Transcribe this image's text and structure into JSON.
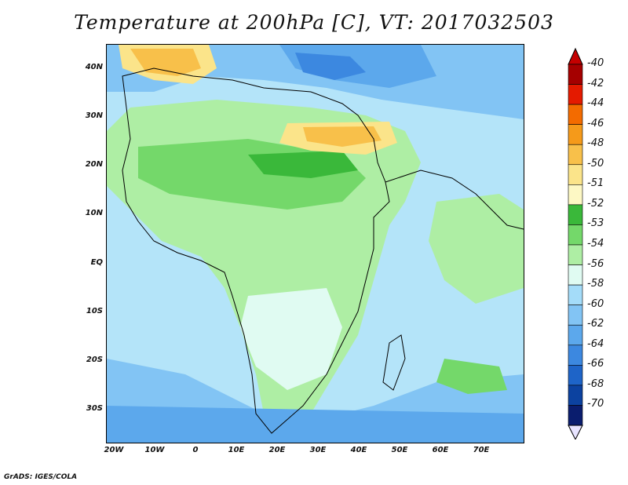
{
  "title": "Temperature at 200hPa [C], VT: 2017032503",
  "footer": "GrADS: IGES/COLA",
  "lat_labels": [
    "40N",
    "30N",
    "20N",
    "10N",
    "EQ",
    "10S",
    "20S",
    "30S"
  ],
  "lon_labels": [
    "20W",
    "10W",
    "0",
    "10E",
    "20E",
    "30E",
    "40E",
    "50E",
    "60E",
    "70E"
  ],
  "colorbar": {
    "labels": [
      "-40",
      "-42",
      "-44",
      "-46",
      "-48",
      "-50",
      "-51",
      "-52",
      "-53",
      "-54",
      "-56",
      "-58",
      "-60",
      "-62",
      "-64",
      "-66",
      "-68",
      "-70"
    ],
    "colors": [
      "#a50000",
      "#e41a00",
      "#f36b00",
      "#f59a1a",
      "#f8c04a",
      "#fbe48a",
      "#fdf8c4",
      "#3ab83a",
      "#74d86a",
      "#aeeea4",
      "#e0fbf2",
      "#a4dcf9",
      "#82c4f4",
      "#5ca8ec",
      "#3c88e0",
      "#1e64c8",
      "#0c42a0",
      "#0a1d6e"
    ],
    "under_color": "#e8e4ff",
    "over_color": "#c40000"
  }
}
